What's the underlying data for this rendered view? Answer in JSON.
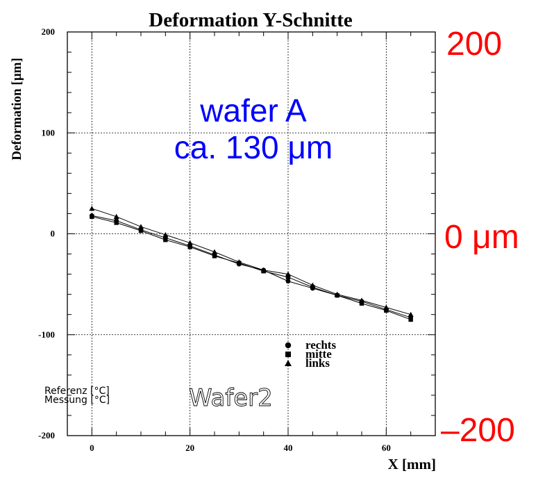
{
  "chart_data": {
    "type": "line",
    "title": "Deformation Y-Schnitte",
    "xlabel": "X [mm]",
    "ylabel": "Deformation [µm]",
    "xlim": [
      -5,
      70
    ],
    "ylim": [
      -200,
      200
    ],
    "x_ticks": [
      0,
      20,
      40,
      60
    ],
    "y_ticks": [
      200,
      100,
      0,
      -100,
      -200
    ],
    "grid": true,
    "legend_position": "lower-center",
    "series": [
      {
        "name": "rechts",
        "marker": "circle",
        "x": [
          0,
          5,
          10,
          15,
          20,
          25,
          30,
          35,
          40,
          45,
          50,
          55,
          60,
          65
        ],
        "y": [
          18,
          13,
          4,
          -4,
          -12,
          -21,
          -30,
          -36,
          -47,
          -54,
          -61,
          -67,
          -75,
          -83
        ]
      },
      {
        "name": "mitte",
        "marker": "square",
        "x": [
          0,
          5,
          10,
          15,
          20,
          25,
          30,
          35,
          40,
          45,
          50,
          55,
          60,
          65
        ],
        "y": [
          17,
          11,
          3,
          -6,
          -13,
          -22,
          -29,
          -37,
          -43,
          -53,
          -61,
          -69,
          -76,
          -85
        ]
      },
      {
        "name": "links",
        "marker": "triangle",
        "x": [
          0,
          5,
          10,
          15,
          20,
          25,
          30,
          35,
          40,
          45,
          50,
          55,
          60,
          65
        ],
        "y": [
          25,
          17,
          7,
          -1,
          -9,
          -18,
          -28,
          -36,
          -40,
          -51,
          -60,
          -66,
          -73,
          -80
        ]
      }
    ],
    "annotations": {
      "referenz": "Referenz [°C]",
      "messung": "Messung [°C]",
      "wafer_id": "Wafer2"
    }
  },
  "overlay": {
    "top": "200",
    "middle": "0  μm",
    "bottom": "–200",
    "wafer_line1": "wafer A",
    "wafer_line2": "ca. 130 μm",
    "red_color": "#ff0000",
    "blue_color": "#0000ff"
  }
}
